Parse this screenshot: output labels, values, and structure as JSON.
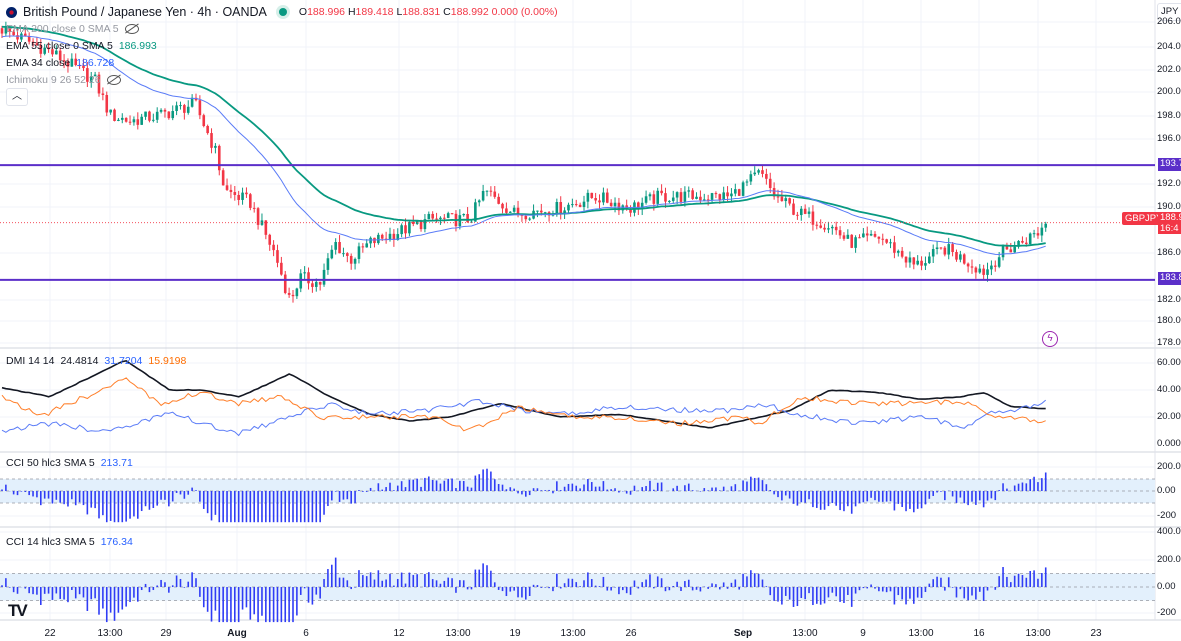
{
  "header": {
    "symbol_title": "British Pound / Japanese Yen · 4h · OANDA",
    "ohlc": {
      "o_label": "O",
      "o": "188.996",
      "h_label": "H",
      "h": "189.418",
      "l_label": "L",
      "l": "188.831",
      "c_label": "C",
      "c": "188.992",
      "change": "0.000 (0.00%)"
    }
  },
  "indicators": {
    "ema200": {
      "label": "EMA 200 close 0 SMA 5"
    },
    "ema55": {
      "label": "EMA 55 close 0 SMA 5",
      "value": "186.993"
    },
    "ema34": {
      "label": "EMA 34 close",
      "value": "186.728"
    },
    "ichimoku": {
      "label": "Ichimoku 9 26 52 26"
    },
    "dmi": {
      "label": "DMI 14 14",
      "adx": "24.4814",
      "plus_di": "31.7204",
      "minus_di": "15.9198"
    },
    "cci50": {
      "label": "CCI 50 hlc3 SMA 5",
      "value": "213.71"
    },
    "cci14": {
      "label": "CCI 14 hlc3 SMA 5",
      "value": "176.34"
    }
  },
  "price_axis": {
    "currency": "JPY",
    "ticks": [
      "206.0",
      "204.0",
      "202.0",
      "200.0",
      "198.0",
      "196.0",
      "192.0",
      "190.0",
      "186.0",
      "182.0",
      "180.0",
      "178.0"
    ],
    "level_tags": [
      "193.7",
      "183.8"
    ],
    "current_price": "188.9",
    "countdown": "16:4",
    "symbol_tag": "GBPJPY"
  },
  "dmi_axis": [
    "60.00",
    "40.00",
    "20.00",
    "0.000"
  ],
  "cci50_axis": [
    "200.0",
    "0.00",
    "-200"
  ],
  "cci14_axis": [
    "400.0",
    "200.0",
    "0.00",
    "-200"
  ],
  "time_axis": [
    "22",
    "13:00",
    "29",
    "Aug",
    "6",
    "12",
    "13:00",
    "19",
    "13:00",
    "26",
    "Sep",
    "13:00",
    "9",
    "13:00",
    "16",
    "13:00",
    "23"
  ],
  "colors": {
    "up": "#089981",
    "down": "#f23645",
    "ema55": "#089981",
    "ema34": "#5b7cf7",
    "level": "#5b2fc9",
    "adx": "#131722",
    "plus_di": "#5b7cf7",
    "minus_di": "#ff7f2a",
    "cci": "#2f3cf5"
  },
  "chart_data": {
    "type": "candlestick",
    "timeframe": "4h",
    "price_range": [
      178,
      206
    ],
    "horizontal_levels": [
      193.7,
      183.8
    ],
    "current_price": 188.992,
    "price_path": [
      [
        0,
        205.5
      ],
      [
        50,
        203.5
      ],
      [
        95,
        201
      ],
      [
        110,
        198
      ],
      [
        130,
        197.5
      ],
      [
        160,
        198
      ],
      [
        195,
        199
      ],
      [
        215,
        195
      ],
      [
        225,
        191.5
      ],
      [
        250,
        190.5
      ],
      [
        275,
        186
      ],
      [
        290,
        182
      ],
      [
        300,
        184
      ],
      [
        320,
        183.5
      ],
      [
        335,
        187
      ],
      [
        350,
        185.5
      ],
      [
        370,
        187
      ],
      [
        400,
        188
      ],
      [
        430,
        189
      ],
      [
        470,
        189
      ],
      [
        485,
        191.5
      ],
      [
        515,
        189.5
      ],
      [
        560,
        190
      ],
      [
        595,
        191
      ],
      [
        630,
        190
      ],
      [
        660,
        191
      ],
      [
        700,
        191
      ],
      [
        730,
        191
      ],
      [
        760,
        193
      ],
      [
        775,
        191
      ],
      [
        800,
        189.5
      ],
      [
        830,
        188.5
      ],
      [
        850,
        187
      ],
      [
        880,
        187.5
      ],
      [
        915,
        185
      ],
      [
        945,
        186.5
      ],
      [
        965,
        185.5
      ],
      [
        985,
        184.5
      ],
      [
        1000,
        186
      ],
      [
        1020,
        187
      ],
      [
        1040,
        188
      ],
      [
        1048,
        189.2
      ]
    ],
    "dmi": {
      "range": [
        0,
        60
      ],
      "adx": [
        [
          0,
          42
        ],
        [
          50,
          35
        ],
        [
          125,
          62
        ],
        [
          170,
          40
        ],
        [
          200,
          40
        ],
        [
          240,
          35
        ],
        [
          290,
          52
        ],
        [
          330,
          35
        ],
        [
          370,
          22
        ],
        [
          410,
          17
        ],
        [
          450,
          20
        ],
        [
          500,
          30
        ],
        [
          560,
          20
        ],
        [
          620,
          22
        ],
        [
          710,
          12
        ],
        [
          760,
          20
        ],
        [
          790,
          25
        ],
        [
          830,
          40
        ],
        [
          880,
          38
        ],
        [
          920,
          33
        ],
        [
          960,
          35
        ],
        [
          985,
          38
        ],
        [
          1010,
          28
        ],
        [
          1048,
          26
        ]
      ],
      "plus_di": [
        [
          0,
          10
        ],
        [
          50,
          15
        ],
        [
          100,
          10
        ],
        [
          130,
          12
        ],
        [
          170,
          25
        ],
        [
          200,
          15
        ],
        [
          240,
          8
        ],
        [
          290,
          20
        ],
        [
          330,
          30
        ],
        [
          370,
          22
        ],
        [
          430,
          25
        ],
        [
          480,
          32
        ],
        [
          520,
          25
        ],
        [
          570,
          22
        ],
        [
          620,
          28
        ],
        [
          680,
          25
        ],
        [
          740,
          25
        ],
        [
          760,
          30
        ],
        [
          800,
          22
        ],
        [
          860,
          15
        ],
        [
          920,
          20
        ],
        [
          970,
          12
        ],
        [
          990,
          25
        ],
        [
          1010,
          25
        ],
        [
          1048,
          32
        ]
      ],
      "minus_di": [
        [
          0,
          37
        ],
        [
          40,
          20
        ],
        [
          70,
          30
        ],
        [
          125,
          48
        ],
        [
          160,
          30
        ],
        [
          200,
          38
        ],
        [
          240,
          30
        ],
        [
          280,
          35
        ],
        [
          320,
          20
        ],
        [
          380,
          20
        ],
        [
          430,
          20
        ],
        [
          470,
          10
        ],
        [
          520,
          27
        ],
        [
          570,
          20
        ],
        [
          620,
          20
        ],
        [
          680,
          15
        ],
        [
          740,
          20
        ],
        [
          760,
          15
        ],
        [
          800,
          35
        ],
        [
          860,
          30
        ],
        [
          920,
          30
        ],
        [
          960,
          32
        ],
        [
          990,
          22
        ],
        [
          1020,
          20
        ],
        [
          1048,
          16
        ]
      ]
    },
    "cci_bands": [
      -100,
      100
    ]
  }
}
